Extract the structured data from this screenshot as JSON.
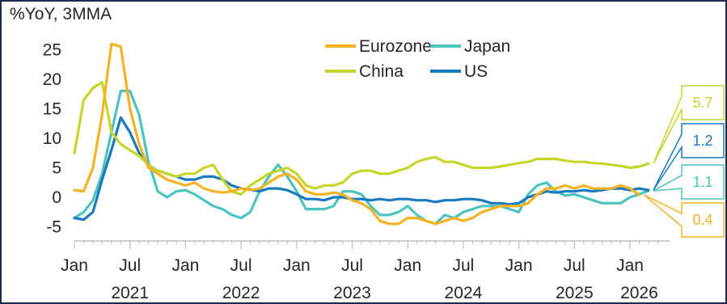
{
  "unit_label": "%YoY, 3MMA",
  "chart_data": {
    "type": "line",
    "ylim": [
      -7,
      27
    ],
    "y_ticks": [
      25,
      20,
      15,
      10,
      5,
      0,
      -5
    ],
    "y_tick_labels": [
      "25",
      "20",
      "15",
      "10",
      "5",
      "0",
      "-5"
    ],
    "x_ticks": [
      {
        "month": "2021-01",
        "label": "Jan"
      },
      {
        "month": "2021-07",
        "label": "Jul"
      },
      {
        "month": "2022-01",
        "label": "Jan"
      },
      {
        "month": "2022-07",
        "label": "Jul"
      },
      {
        "month": "2023-01",
        "label": "Jan"
      },
      {
        "month": "2023-07",
        "label": "Jul"
      },
      {
        "month": "2024-01",
        "label": "Jan"
      },
      {
        "month": "2024-07",
        "label": "Jul"
      },
      {
        "month": "2025-01",
        "label": "Jan"
      },
      {
        "month": "2025-07",
        "label": "Jul"
      },
      {
        "month": "2026-01",
        "label": "Jan"
      }
    ],
    "years": [
      {
        "month": "2021-07",
        "label": "2021"
      },
      {
        "month": "2022-07",
        "label": "2022"
      },
      {
        "month": "2023-07",
        "label": "2023"
      },
      {
        "month": "2024-07",
        "label": "2024"
      },
      {
        "month": "2025-07",
        "label": "2025"
      },
      {
        "month": "2026-02",
        "label": "2026"
      }
    ],
    "series": [
      {
        "name": "Eurozone",
        "color": "#f5b324",
        "last_label": "0.4",
        "points": [
          [
            "2021-01",
            1.2
          ],
          [
            "2021-02",
            1.0
          ],
          [
            "2021-03",
            5.0
          ],
          [
            "2021-04",
            14.0
          ],
          [
            "2021-05",
            26.0
          ],
          [
            "2021-06",
            25.5
          ],
          [
            "2021-07",
            15.0
          ],
          [
            "2021-08",
            9.0
          ],
          [
            "2021-09",
            5.0
          ],
          [
            "2021-10",
            4.0
          ],
          [
            "2021-11",
            3.0
          ],
          [
            "2021-12",
            2.5
          ],
          [
            "2022-01",
            2.0
          ],
          [
            "2022-02",
            2.5
          ],
          [
            "2022-03",
            1.5
          ],
          [
            "2022-04",
            1.0
          ],
          [
            "2022-05",
            0.8
          ],
          [
            "2022-06",
            1.0
          ],
          [
            "2022-07",
            1.5
          ],
          [
            "2022-08",
            1.2
          ],
          [
            "2022-09",
            1.5
          ],
          [
            "2022-10",
            2.5
          ],
          [
            "2022-11",
            3.5
          ],
          [
            "2022-12",
            4.0
          ],
          [
            "2023-01",
            3.0
          ],
          [
            "2023-02",
            1.0
          ],
          [
            "2023-03",
            0.5
          ],
          [
            "2023-04",
            0.5
          ],
          [
            "2023-05",
            0.8
          ],
          [
            "2023-06",
            0.5
          ],
          [
            "2023-07",
            -0.5
          ],
          [
            "2023-08",
            -1.0
          ],
          [
            "2023-09",
            -2.0
          ],
          [
            "2023-10",
            -4.0
          ],
          [
            "2023-11",
            -4.5
          ],
          [
            "2023-12",
            -4.5
          ],
          [
            "2024-01",
            -3.5
          ],
          [
            "2024-02",
            -3.5
          ],
          [
            "2024-03",
            -4.0
          ],
          [
            "2024-04",
            -4.5
          ],
          [
            "2024-05",
            -4.0
          ],
          [
            "2024-06",
            -3.5
          ],
          [
            "2024-07",
            -4.0
          ],
          [
            "2024-08",
            -3.5
          ],
          [
            "2024-09",
            -2.5
          ],
          [
            "2024-10",
            -2.0
          ],
          [
            "2024-11",
            -1.5
          ],
          [
            "2024-12",
            -1.5
          ],
          [
            "2025-01",
            -1.5
          ],
          [
            "2025-02",
            -1.0
          ],
          [
            "2025-03",
            0.5
          ],
          [
            "2025-04",
            1.5
          ],
          [
            "2025-05",
            1.5
          ],
          [
            "2025-06",
            2.0
          ],
          [
            "2025-07",
            1.5
          ],
          [
            "2025-08",
            2.0
          ],
          [
            "2025-09",
            1.5
          ],
          [
            "2025-10",
            1.5
          ],
          [
            "2025-11",
            1.5
          ],
          [
            "2025-12",
            2.0
          ],
          [
            "2026-01",
            1.5
          ],
          [
            "2026-02",
            0.4
          ]
        ]
      },
      {
        "name": "Japan",
        "color": "#4cc3be",
        "last_label": "1.1",
        "points": [
          [
            "2021-01",
            -3.5
          ],
          [
            "2021-02",
            -2.5
          ],
          [
            "2021-03",
            -0.5
          ],
          [
            "2021-04",
            4.0
          ],
          [
            "2021-05",
            11.0
          ],
          [
            "2021-06",
            18.0
          ],
          [
            "2021-07",
            18.0
          ],
          [
            "2021-08",
            14.0
          ],
          [
            "2021-09",
            6.0
          ],
          [
            "2021-10",
            1.0
          ],
          [
            "2021-11",
            0.0
          ],
          [
            "2021-12",
            1.0
          ],
          [
            "2022-01",
            1.2
          ],
          [
            "2022-02",
            0.5
          ],
          [
            "2022-03",
            -0.5
          ],
          [
            "2022-04",
            -1.5
          ],
          [
            "2022-05",
            -2.0
          ],
          [
            "2022-06",
            -3.0
          ],
          [
            "2022-07",
            -3.5
          ],
          [
            "2022-08",
            -2.5
          ],
          [
            "2022-09",
            1.0
          ],
          [
            "2022-10",
            3.5
          ],
          [
            "2022-11",
            5.5
          ],
          [
            "2022-12",
            3.5
          ],
          [
            "2023-01",
            1.0
          ],
          [
            "2023-02",
            -2.0
          ],
          [
            "2023-03",
            -2.0
          ],
          [
            "2023-04",
            -2.0
          ],
          [
            "2023-05",
            -1.5
          ],
          [
            "2023-06",
            1.0
          ],
          [
            "2023-07",
            1.0
          ],
          [
            "2023-08",
            0.5
          ],
          [
            "2023-09",
            -1.5
          ],
          [
            "2023-10",
            -3.0
          ],
          [
            "2023-11",
            -3.0
          ],
          [
            "2023-12",
            -2.5
          ],
          [
            "2024-01",
            -1.5
          ],
          [
            "2024-02",
            -3.0
          ],
          [
            "2024-03",
            -4.0
          ],
          [
            "2024-04",
            -4.5
          ],
          [
            "2024-05",
            -3.0
          ],
          [
            "2024-06",
            -3.5
          ],
          [
            "2024-07",
            -2.5
          ],
          [
            "2024-08",
            -2.0
          ],
          [
            "2024-09",
            -1.5
          ],
          [
            "2024-10",
            -1.5
          ],
          [
            "2024-11",
            -1.5
          ],
          [
            "2024-12",
            -2.0
          ],
          [
            "2025-01",
            -2.5
          ],
          [
            "2025-02",
            0.5
          ],
          [
            "2025-03",
            2.0
          ],
          [
            "2025-04",
            2.5
          ],
          [
            "2025-05",
            1.0
          ],
          [
            "2025-06",
            0.3
          ],
          [
            "2025-07",
            0.5
          ],
          [
            "2025-08",
            0.0
          ],
          [
            "2025-09",
            -0.5
          ],
          [
            "2025-10",
            -1.0
          ],
          [
            "2025-11",
            -1.0
          ],
          [
            "2025-12",
            -1.0
          ],
          [
            "2026-01",
            0.0
          ],
          [
            "2026-02",
            0.5
          ],
          [
            "2026-03",
            1.1
          ]
        ]
      },
      {
        "name": "China",
        "color": "#c7d52b",
        "last_label": "5.7",
        "points": [
          [
            "2021-01",
            7.5
          ],
          [
            "2021-02",
            16.5
          ],
          [
            "2021-03",
            18.5
          ],
          [
            "2021-04",
            19.5
          ],
          [
            "2021-05",
            11.0
          ],
          [
            "2021-06",
            9.0
          ],
          [
            "2021-07",
            8.0
          ],
          [
            "2021-08",
            7.0
          ],
          [
            "2021-09",
            5.5
          ],
          [
            "2021-10",
            4.5
          ],
          [
            "2021-11",
            4.0
          ],
          [
            "2021-12",
            3.5
          ],
          [
            "2022-01",
            4.0
          ],
          [
            "2022-02",
            4.0
          ],
          [
            "2022-03",
            5.0
          ],
          [
            "2022-04",
            5.5
          ],
          [
            "2022-05",
            3.0
          ],
          [
            "2022-06",
            1.0
          ],
          [
            "2022-07",
            0.5
          ],
          [
            "2022-08",
            2.0
          ],
          [
            "2022-09",
            3.0
          ],
          [
            "2022-10",
            4.0
          ],
          [
            "2022-11",
            4.5
          ],
          [
            "2022-12",
            5.0
          ],
          [
            "2023-01",
            4.0
          ],
          [
            "2023-02",
            2.0
          ],
          [
            "2023-03",
            1.5
          ],
          [
            "2023-04",
            2.0
          ],
          [
            "2023-05",
            2.0
          ],
          [
            "2023-06",
            2.5
          ],
          [
            "2023-07",
            4.0
          ],
          [
            "2023-08",
            4.5
          ],
          [
            "2023-09",
            4.5
          ],
          [
            "2023-10",
            4.0
          ],
          [
            "2023-11",
            4.0
          ],
          [
            "2023-12",
            4.5
          ],
          [
            "2024-01",
            5.0
          ],
          [
            "2024-02",
            6.0
          ],
          [
            "2024-03",
            6.5
          ],
          [
            "2024-04",
            6.8
          ],
          [
            "2024-05",
            6.0
          ],
          [
            "2024-06",
            6.0
          ],
          [
            "2024-07",
            5.5
          ],
          [
            "2024-08",
            5.0
          ],
          [
            "2024-09",
            5.0
          ],
          [
            "2024-10",
            5.0
          ],
          [
            "2024-11",
            5.2
          ],
          [
            "2024-12",
            5.5
          ],
          [
            "2025-01",
            5.8
          ],
          [
            "2025-02",
            6.0
          ],
          [
            "2025-03",
            6.5
          ],
          [
            "2025-04",
            6.5
          ],
          [
            "2025-05",
            6.5
          ],
          [
            "2025-06",
            6.2
          ],
          [
            "2025-07",
            6.0
          ],
          [
            "2025-08",
            6.0
          ],
          [
            "2025-09",
            5.8
          ],
          [
            "2025-10",
            5.7
          ],
          [
            "2025-11",
            5.5
          ],
          [
            "2025-12",
            5.3
          ],
          [
            "2026-01",
            5.0
          ],
          [
            "2026-02",
            5.2
          ],
          [
            "2026-03",
            5.7
          ]
        ]
      },
      {
        "name": "US",
        "color": "#1a7ac0",
        "last_label": "1.2",
        "points": [
          [
            "2021-01",
            -3.5
          ],
          [
            "2021-02",
            -3.8
          ],
          [
            "2021-03",
            -2.5
          ],
          [
            "2021-04",
            3.0
          ],
          [
            "2021-05",
            8.0
          ],
          [
            "2021-06",
            13.5
          ],
          [
            "2021-07",
            11.0
          ],
          [
            "2021-08",
            7.5
          ],
          [
            "2021-09",
            5.5
          ],
          [
            "2021-10",
            4.5
          ],
          [
            "2021-11",
            4.0
          ],
          [
            "2021-12",
            3.5
          ],
          [
            "2022-01",
            3.0
          ],
          [
            "2022-02",
            3.0
          ],
          [
            "2022-03",
            3.5
          ],
          [
            "2022-04",
            3.5
          ],
          [
            "2022-05",
            3.0
          ],
          [
            "2022-06",
            2.0
          ],
          [
            "2022-07",
            1.5
          ],
          [
            "2022-08",
            1.3
          ],
          [
            "2022-09",
            1.0
          ],
          [
            "2022-10",
            1.5
          ],
          [
            "2022-11",
            1.5
          ],
          [
            "2022-12",
            1.2
          ],
          [
            "2023-01",
            0.5
          ],
          [
            "2023-02",
            -0.3
          ],
          [
            "2023-03",
            -0.3
          ],
          [
            "2023-04",
            -0.5
          ],
          [
            "2023-05",
            0.0
          ],
          [
            "2023-06",
            0.0
          ],
          [
            "2023-07",
            -0.3
          ],
          [
            "2023-08",
            -0.3
          ],
          [
            "2023-09",
            -0.5
          ],
          [
            "2023-10",
            -0.3
          ],
          [
            "2023-11",
            -0.5
          ],
          [
            "2023-12",
            -0.3
          ],
          [
            "2024-01",
            -0.3
          ],
          [
            "2024-02",
            -0.5
          ],
          [
            "2024-03",
            -0.5
          ],
          [
            "2024-04",
            -0.8
          ],
          [
            "2024-05",
            -0.5
          ],
          [
            "2024-06",
            -0.5
          ],
          [
            "2024-07",
            -0.3
          ],
          [
            "2024-08",
            -0.3
          ],
          [
            "2024-09",
            -0.5
          ],
          [
            "2024-10",
            -1.0
          ],
          [
            "2024-11",
            -1.0
          ],
          [
            "2024-12",
            -1.2
          ],
          [
            "2025-01",
            -1.0
          ],
          [
            "2025-02",
            0.0
          ],
          [
            "2025-03",
            0.5
          ],
          [
            "2025-04",
            1.0
          ],
          [
            "2025-05",
            0.8
          ],
          [
            "2025-06",
            1.0
          ],
          [
            "2025-07",
            1.0
          ],
          [
            "2025-08",
            1.2
          ],
          [
            "2025-09",
            1.0
          ],
          [
            "2025-10",
            1.2
          ],
          [
            "2025-11",
            1.5
          ],
          [
            "2025-12",
            1.5
          ],
          [
            "2026-01",
            1.2
          ],
          [
            "2026-02",
            1.5
          ],
          [
            "2026-03",
            1.2
          ]
        ]
      }
    ]
  }
}
